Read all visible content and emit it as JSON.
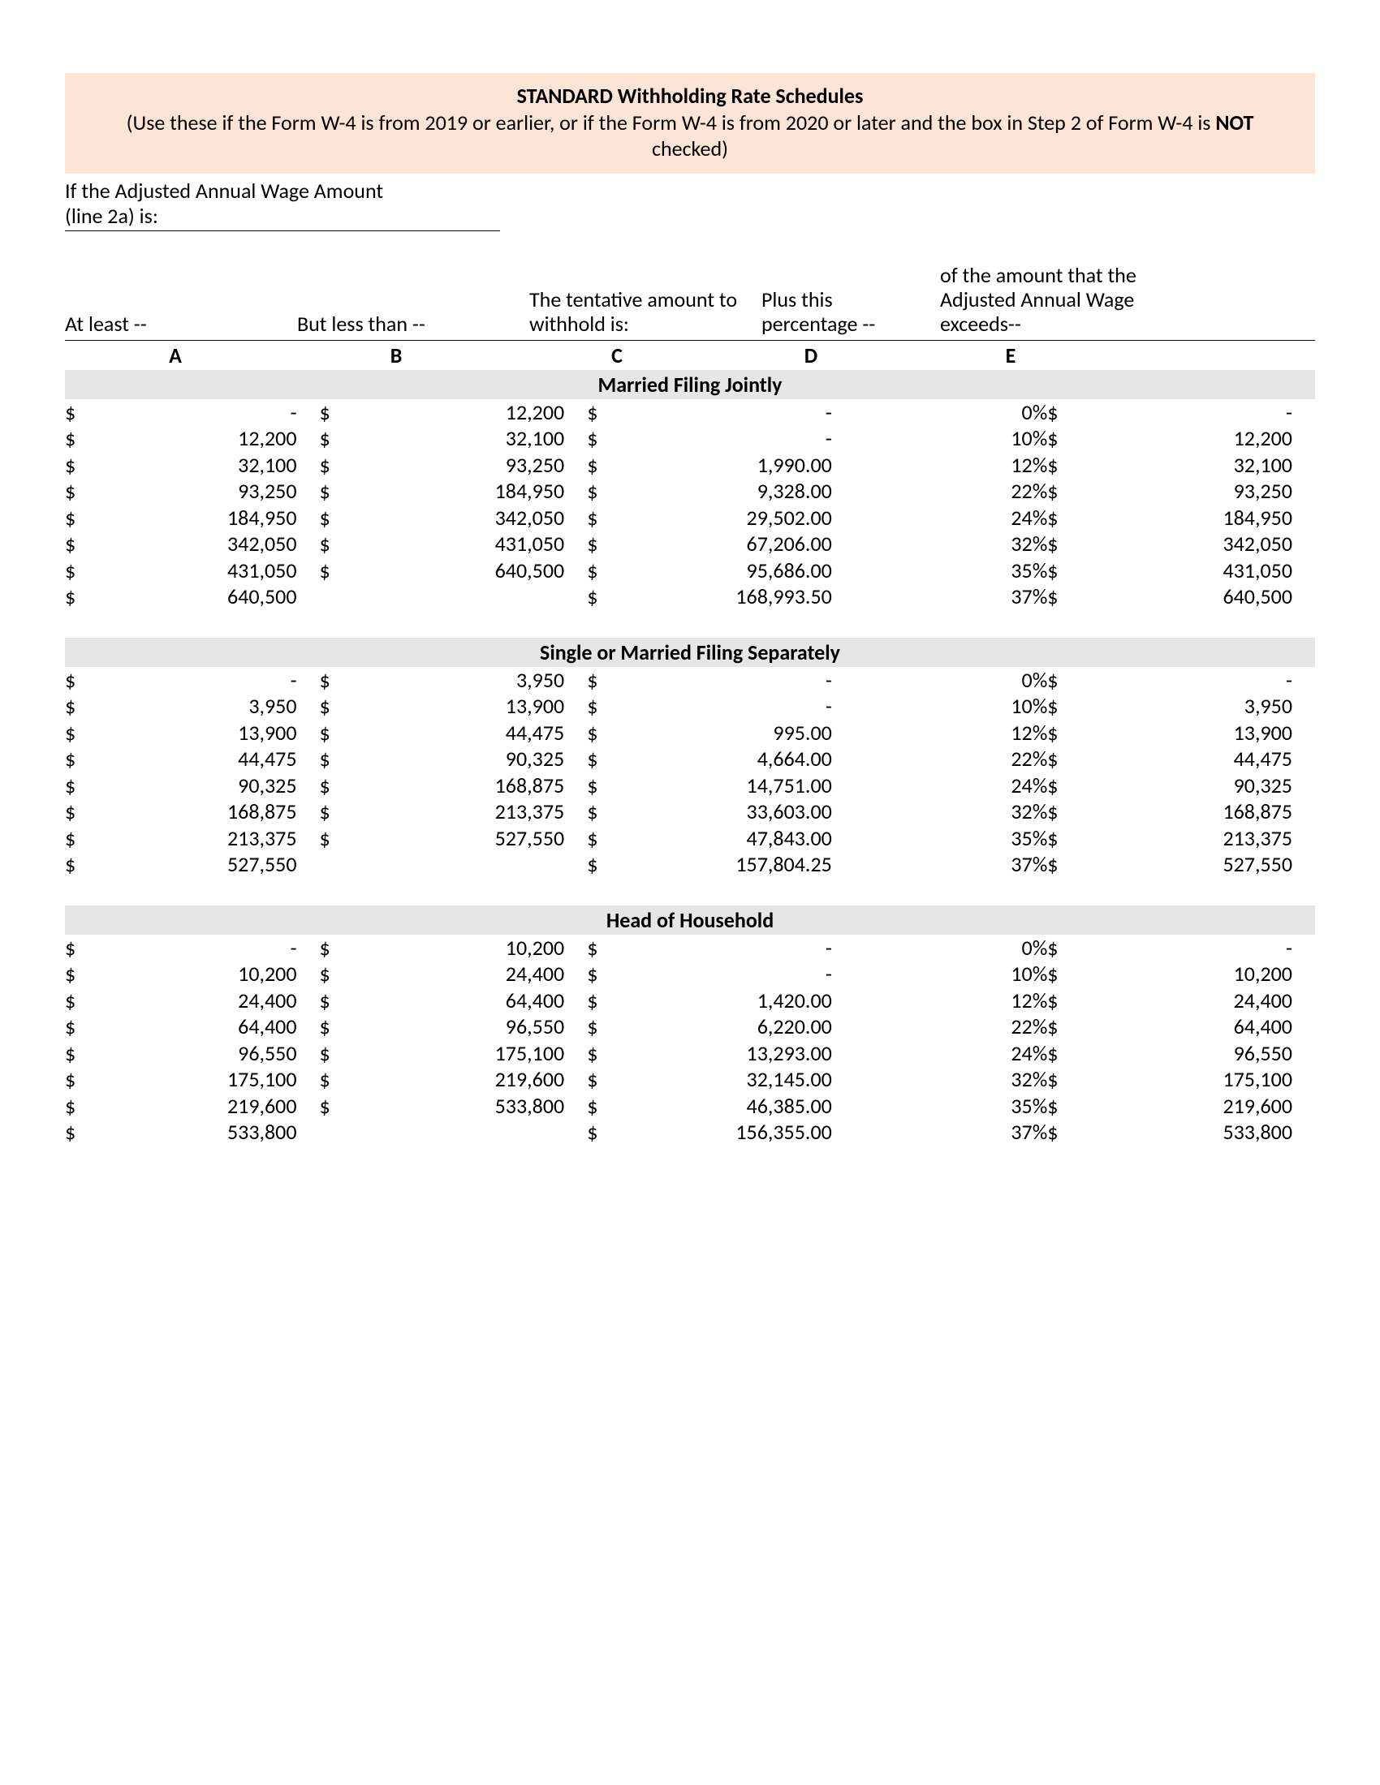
{
  "banner": {
    "title": "STANDARD Withholding Rate Schedules",
    "sub_before": "(Use these if the Form W-4 is from 2019 or earlier, or if the Form W-4 is from 2020 or later and the box in Step 2 of Form W-4 is ",
    "sub_bold": "NOT",
    "sub_after": " checked)"
  },
  "intro": {
    "line1": "If the Adjusted Annual Wage Amount",
    "line2": "(line 2a) is:"
  },
  "column_headers": {
    "a": "At least --",
    "b": "But less than --",
    "c": "The tentative amount to withhold is:",
    "d": "Plus this percentage --",
    "e": "of the amount that the Adjusted Annual Wage exceeds--"
  },
  "letters": {
    "a": "A",
    "b": "B",
    "c": "C",
    "d": "D",
    "e": "E"
  },
  "sections": [
    {
      "title": "Married Filing Jointly",
      "rows": [
        {
          "a": "-",
          "b": "12,200",
          "c": "-",
          "d": "0%",
          "e": "-"
        },
        {
          "a": "12,200",
          "b": "32,100",
          "c": "-",
          "d": "10%",
          "e": "12,200"
        },
        {
          "a": "32,100",
          "b": "93,250",
          "c": "1,990.00",
          "d": "12%",
          "e": "32,100"
        },
        {
          "a": "93,250",
          "b": "184,950",
          "c": "9,328.00",
          "d": "22%",
          "e": "93,250"
        },
        {
          "a": "184,950",
          "b": "342,050",
          "c": "29,502.00",
          "d": "24%",
          "e": "184,950"
        },
        {
          "a": "342,050",
          "b": "431,050",
          "c": "67,206.00",
          "d": "32%",
          "e": "342,050"
        },
        {
          "a": "431,050",
          "b": "640,500",
          "c": "95,686.00",
          "d": "35%",
          "e": "431,050"
        },
        {
          "a": "640,500",
          "b": "",
          "c": "168,993.50",
          "d": "37%",
          "e": "640,500"
        }
      ]
    },
    {
      "title": "Single or Married Filing Separately",
      "rows": [
        {
          "a": "-",
          "b": "3,950",
          "c": "-",
          "d": "0%",
          "e": "-"
        },
        {
          "a": "3,950",
          "b": "13,900",
          "c": "-",
          "d": "10%",
          "e": "3,950"
        },
        {
          "a": "13,900",
          "b": "44,475",
          "c": "995.00",
          "d": "12%",
          "e": "13,900"
        },
        {
          "a": "44,475",
          "b": "90,325",
          "c": "4,664.00",
          "d": "22%",
          "e": "44,475"
        },
        {
          "a": "90,325",
          "b": "168,875",
          "c": "14,751.00",
          "d": "24%",
          "e": "90,325"
        },
        {
          "a": "168,875",
          "b": "213,375",
          "c": "33,603.00",
          "d": "32%",
          "e": "168,875"
        },
        {
          "a": "213,375",
          "b": "527,550",
          "c": "47,843.00",
          "d": "35%",
          "e": "213,375"
        },
        {
          "a": "527,550",
          "b": "",
          "c": "157,804.25",
          "d": "37%",
          "e": "527,550"
        }
      ]
    },
    {
      "title": "Head of Household",
      "rows": [
        {
          "a": "-",
          "b": "10,200",
          "c": "-",
          "d": "0%",
          "e": "-"
        },
        {
          "a": "10,200",
          "b": "24,400",
          "c": "-",
          "d": "10%",
          "e": "10,200"
        },
        {
          "a": "24,400",
          "b": "64,400",
          "c": "1,420.00",
          "d": "12%",
          "e": "24,400"
        },
        {
          "a": "64,400",
          "b": "96,550",
          "c": "6,220.00",
          "d": "22%",
          "e": "64,400"
        },
        {
          "a": "96,550",
          "b": "175,100",
          "c": "13,293.00",
          "d": "24%",
          "e": "96,550"
        },
        {
          "a": "175,100",
          "b": "219,600",
          "c": "32,145.00",
          "d": "32%",
          "e": "175,100"
        },
        {
          "a": "219,600",
          "b": "533,800",
          "c": "46,385.00",
          "d": "35%",
          "e": "219,600"
        },
        {
          "a": "533,800",
          "b": "",
          "c": "156,355.00",
          "d": "37%",
          "e": "533,800"
        }
      ]
    }
  ],
  "colors": {
    "banner_bg": "#fce4d6",
    "section_bg": "#e7e6e6"
  }
}
